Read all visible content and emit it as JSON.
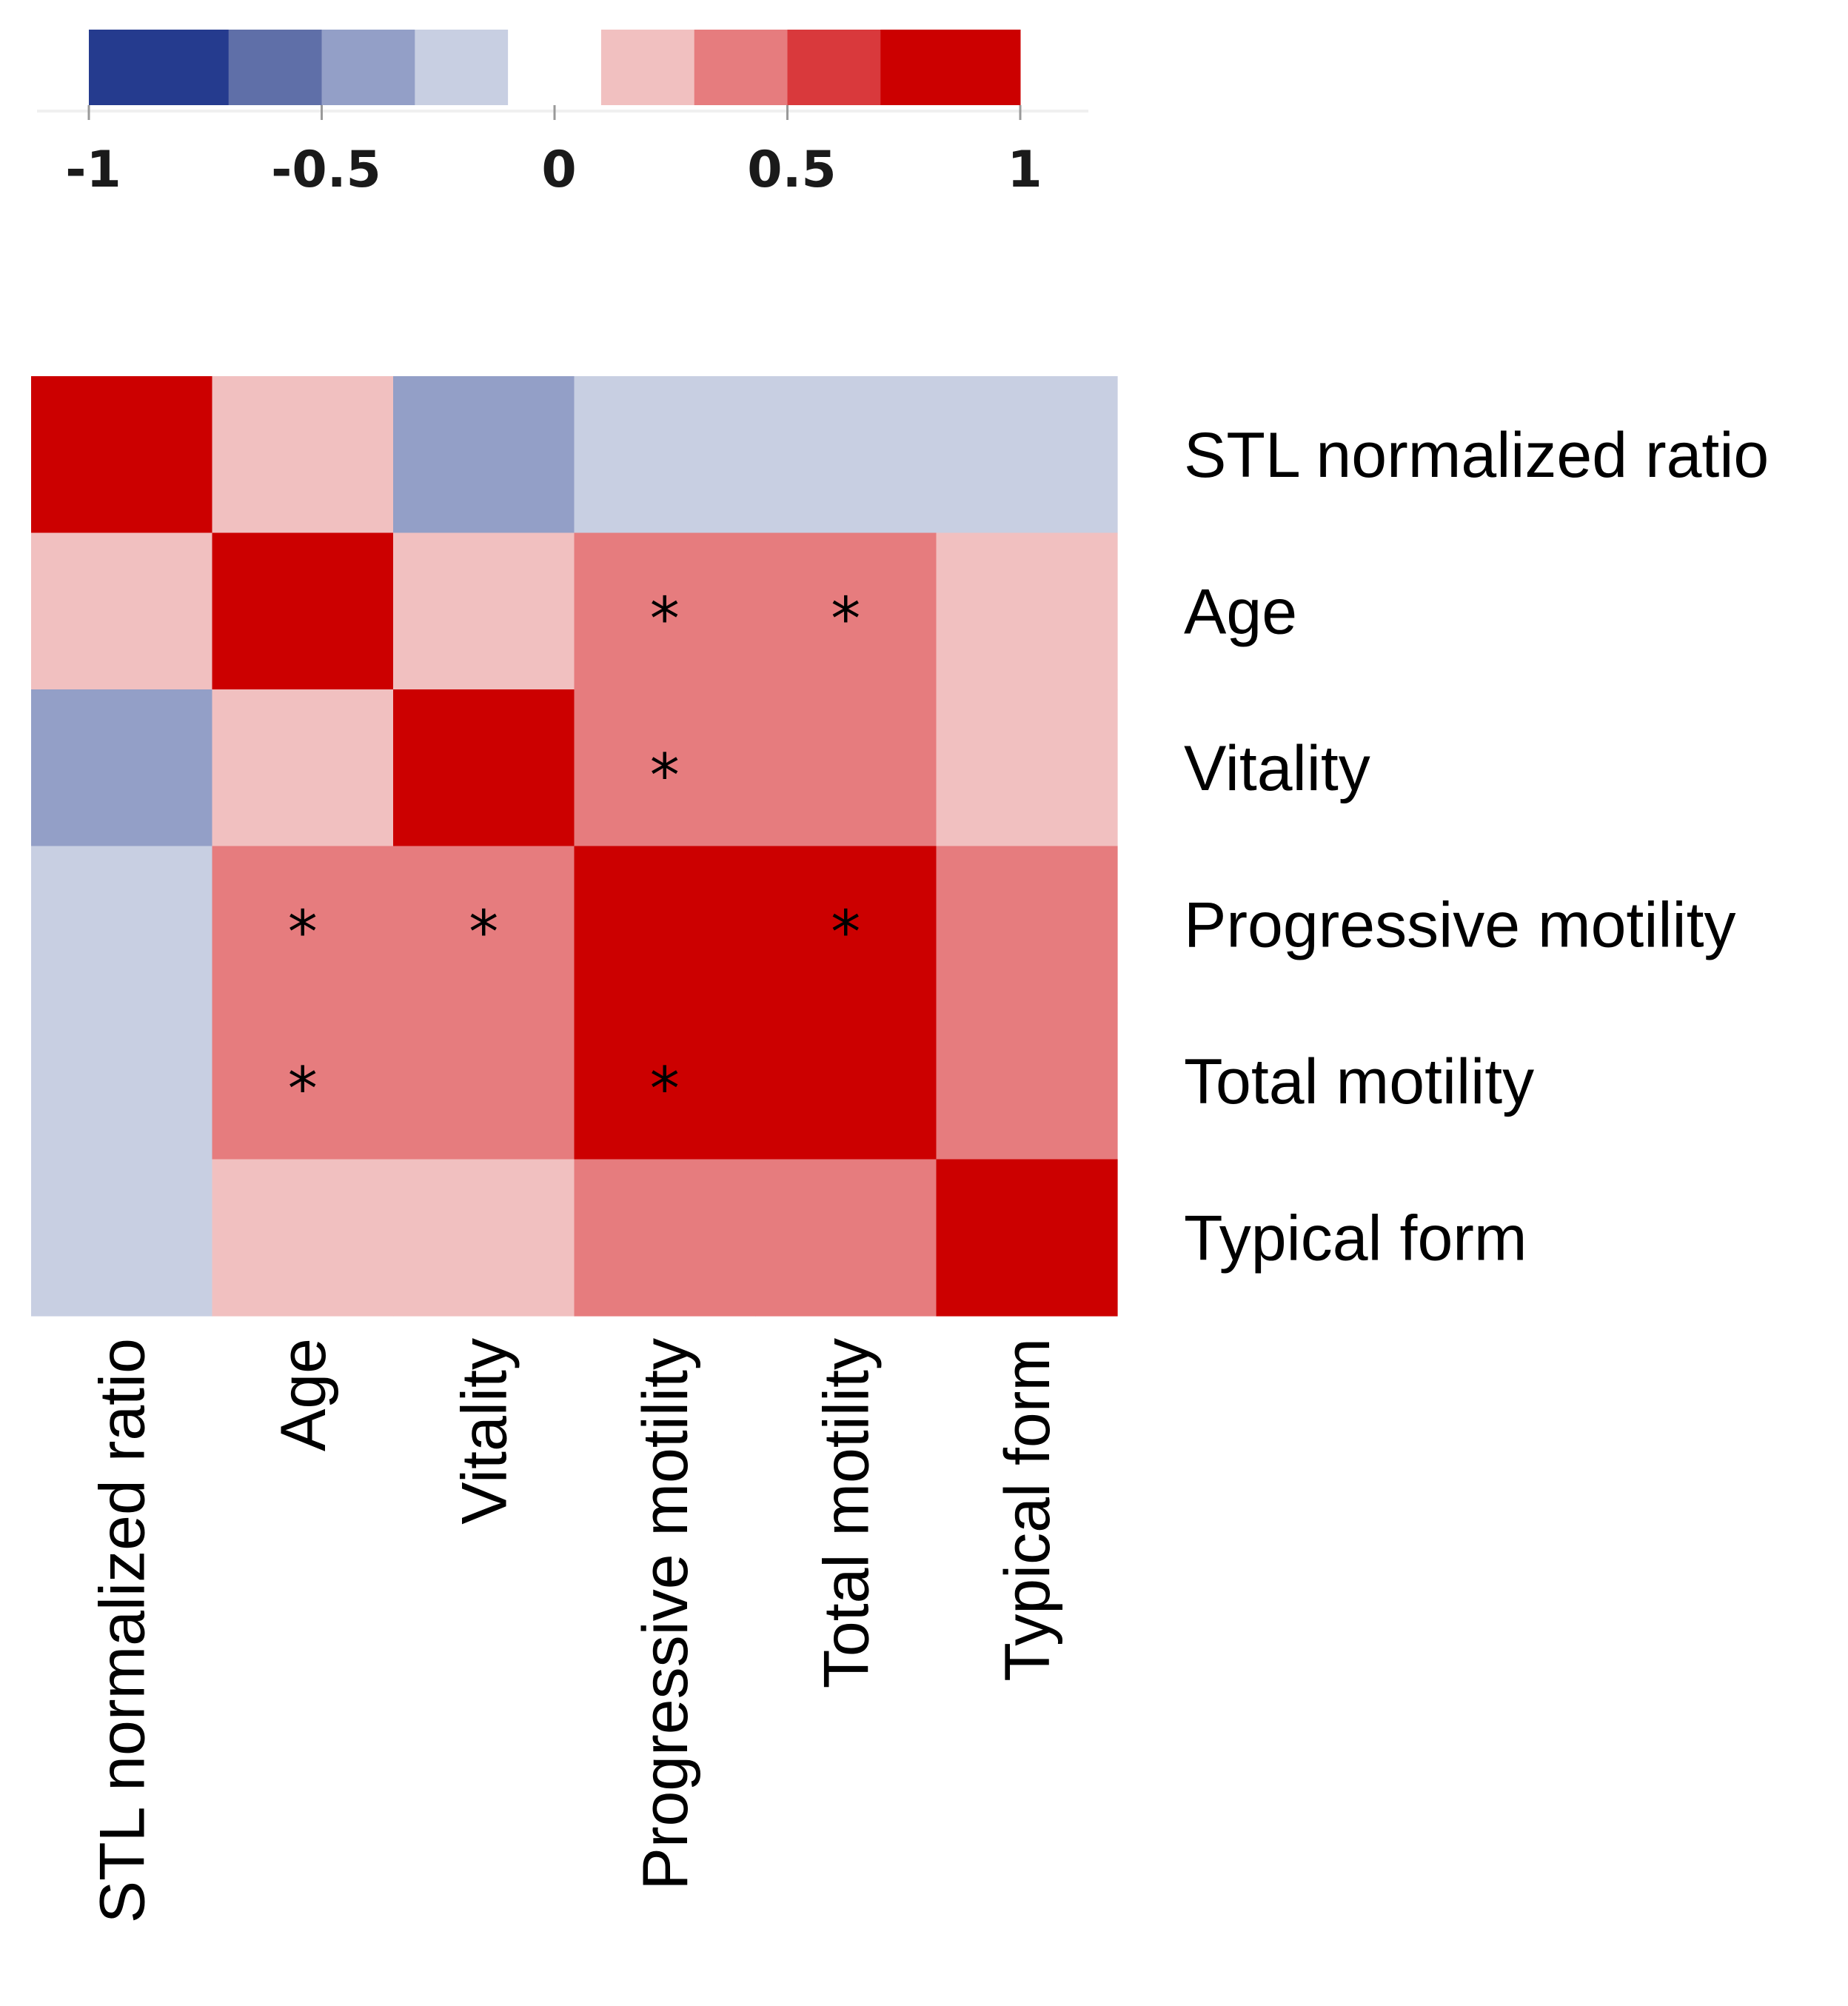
{
  "chart_data": {
    "type": "heatmap",
    "title": "",
    "variables": [
      "STL normalized ratio",
      "Age",
      "Vitality",
      "Progressive motility",
      "Total motility",
      "Typical form"
    ],
    "matrix": [
      [
        1.0,
        0.2,
        -0.4,
        -0.2,
        -0.2,
        -0.2
      ],
      [
        0.2,
        1.0,
        0.2,
        0.4,
        0.4,
        0.2
      ],
      [
        -0.4,
        0.2,
        1.0,
        0.4,
        0.4,
        0.2
      ],
      [
        -0.2,
        0.4,
        0.4,
        1.0,
        1.0,
        0.4
      ],
      [
        -0.2,
        0.4,
        0.4,
        1.0,
        1.0,
        0.4
      ],
      [
        -0.2,
        0.2,
        0.2,
        0.4,
        0.4,
        1.0
      ]
    ],
    "significance_marker": "*",
    "significant_cells": [
      [
        1,
        3
      ],
      [
        1,
        4
      ],
      [
        2,
        3
      ],
      [
        3,
        1
      ],
      [
        3,
        2
      ],
      [
        3,
        4
      ],
      [
        4,
        1
      ],
      [
        4,
        3
      ]
    ],
    "colorbar": {
      "range": [
        -1,
        1
      ],
      "tick_labels": [
        "-1",
        "-0.5",
        "0",
        "0.5",
        "1"
      ],
      "tick_values": [
        -1,
        -0.5,
        0,
        0.5,
        1
      ],
      "bins": [
        {
          "from": -1.0,
          "to": -0.7,
          "color": "#253b8e"
        },
        {
          "from": -0.7,
          "to": -0.5,
          "color": "#5f6fa8"
        },
        {
          "from": -0.5,
          "to": -0.3,
          "color": "#939fc7"
        },
        {
          "from": -0.3,
          "to": -0.1,
          "color": "#c8cfe2"
        },
        {
          "from": -0.1,
          "to": 0.1,
          "color": "#ffffff"
        },
        {
          "from": 0.1,
          "to": 0.3,
          "color": "#f1c0c0"
        },
        {
          "from": 0.3,
          "to": 0.5,
          "color": "#e67c7e"
        },
        {
          "from": 0.5,
          "to": 0.7,
          "color": "#d9393c"
        },
        {
          "from": 0.7,
          "to": 1.0,
          "color": "#cc0000"
        }
      ]
    }
  }
}
